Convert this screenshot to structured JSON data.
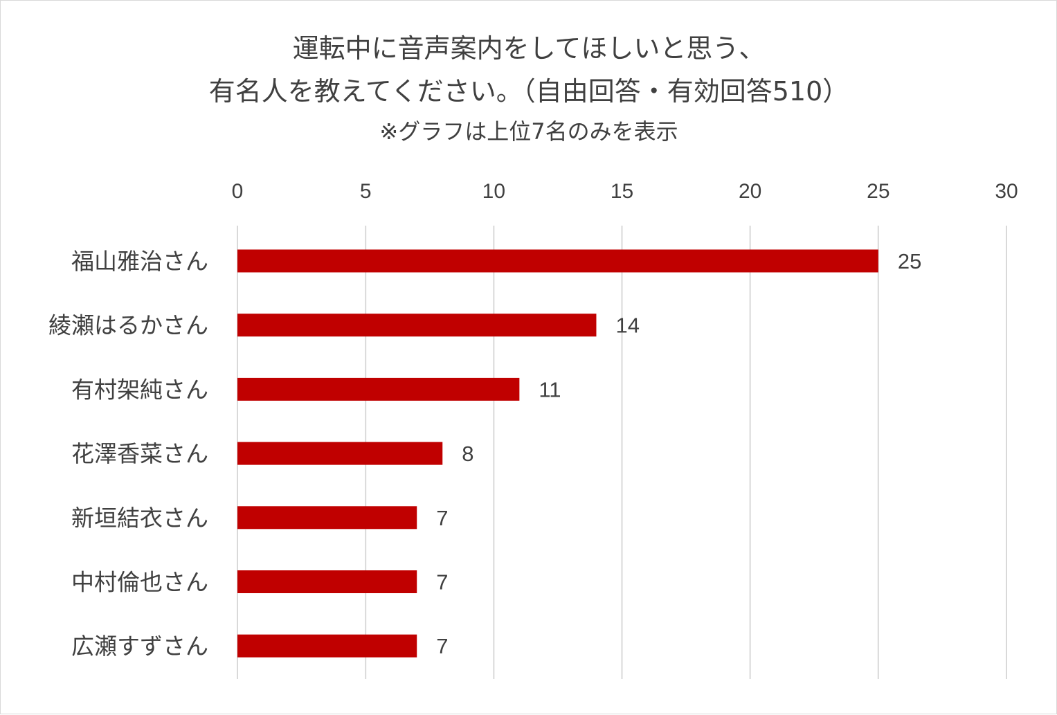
{
  "chart_data": {
    "type": "bar",
    "orientation": "horizontal",
    "title": [
      "運転中に音声案内をしてほしいと思う、",
      "有名人を教えてください。（自由回答・有効回答510）",
      "※グラフは上位7名のみを表示"
    ],
    "categories": [
      "福山雅治さん",
      "綾瀬はるかさん",
      "有村架純さん",
      "花澤香菜さん",
      "新垣結衣さん",
      "中村倫也さん",
      "広瀬すずさん"
    ],
    "values": [
      25,
      14,
      11,
      8,
      7,
      7,
      7
    ],
    "xlim": [
      0,
      30
    ],
    "xticks": [
      0,
      5,
      10,
      15,
      20,
      25,
      30
    ],
    "xaxis_position": "top",
    "grid": true,
    "bar_color": "#C00000"
  }
}
